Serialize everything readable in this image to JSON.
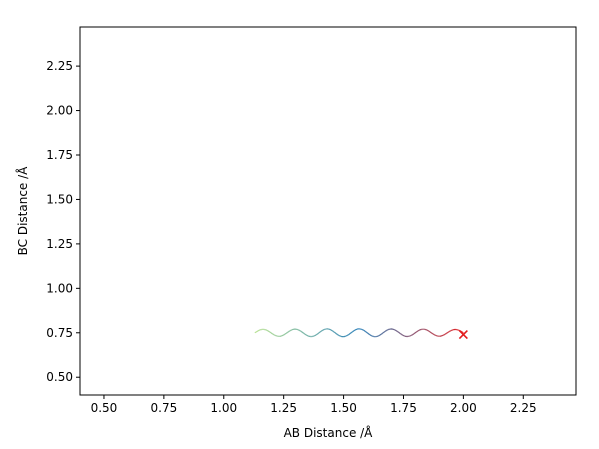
{
  "chart_data": {
    "type": "contour",
    "xlabel": "AB Distance /Å",
    "ylabel": "BC Distance /Å",
    "xlim": [
      0.4,
      2.47
    ],
    "ylim": [
      0.4,
      2.47
    ],
    "x_ticks": [
      {
        "value": 0.5,
        "label": "0.50"
      },
      {
        "value": 0.75,
        "label": "0.75"
      },
      {
        "value": 1.0,
        "label": "1.00"
      },
      {
        "value": 1.25,
        "label": "1.25"
      },
      {
        "value": 1.5,
        "label": "1.50"
      },
      {
        "value": 1.75,
        "label": "1.75"
      },
      {
        "value": 2.0,
        "label": "2.00"
      },
      {
        "value": 2.25,
        "label": "2.25"
      }
    ],
    "y_ticks": [
      {
        "value": 0.5,
        "label": "0.50"
      },
      {
        "value": 0.75,
        "label": "0.75"
      },
      {
        "value": 1.0,
        "label": "1.00"
      },
      {
        "value": 1.25,
        "label": "1.25"
      },
      {
        "value": 1.5,
        "label": "1.50"
      },
      {
        "value": 1.75,
        "label": "1.75"
      },
      {
        "value": 2.0,
        "label": "2.00"
      },
      {
        "value": 2.25,
        "label": "2.25"
      }
    ],
    "colormap": [
      "#440154",
      "#482777",
      "#3e4989",
      "#31688e",
      "#26828e",
      "#1f9e89",
      "#35b779",
      "#6ece58",
      "#b5de2b",
      "#fde725"
    ],
    "contour_levels": 20,
    "start_marker": {
      "x": 2.0,
      "y": 0.74,
      "symbol": "x",
      "color": "#e31a1c"
    },
    "trajectory": {
      "description_free": true,
      "x_start": 2.0,
      "x_end": 1.13,
      "y_center": 0.75,
      "color_start": "#e31a1c",
      "color_end": "#b2df8a"
    },
    "grid": false
  }
}
